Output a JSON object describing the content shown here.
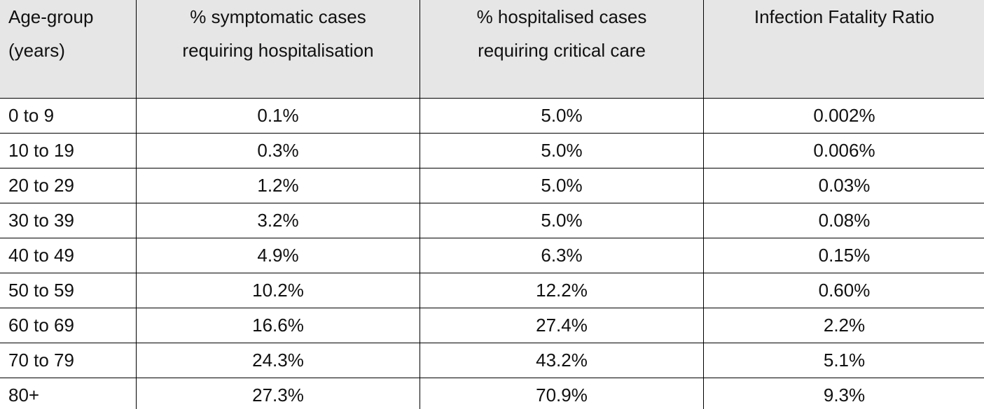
{
  "table": {
    "headers": [
      [
        "Age-group",
        "(years)"
      ],
      [
        "% symptomatic cases",
        "requiring hospitalisation"
      ],
      [
        "% hospitalised cases",
        "requiring critical care"
      ],
      [
        "Infection Fatality Ratio"
      ]
    ],
    "rows": [
      [
        "0 to 9",
        "0.1%",
        "5.0%",
        "0.002%"
      ],
      [
        "10 to 19",
        "0.3%",
        "5.0%",
        "0.006%"
      ],
      [
        "20 to 29",
        "1.2%",
        "5.0%",
        "0.03%"
      ],
      [
        "30 to 39",
        "3.2%",
        "5.0%",
        "0.08%"
      ],
      [
        "40 to 49",
        "4.9%",
        "6.3%",
        "0.15%"
      ],
      [
        "50 to 59",
        "10.2%",
        "12.2%",
        "0.60%"
      ],
      [
        "60 to 69",
        "16.6%",
        "27.4%",
        "2.2%"
      ],
      [
        "70 to 79",
        "24.3%",
        "43.2%",
        "5.1%"
      ],
      [
        "80+",
        "27.3%",
        "70.9%",
        "9.3%"
      ]
    ]
  }
}
